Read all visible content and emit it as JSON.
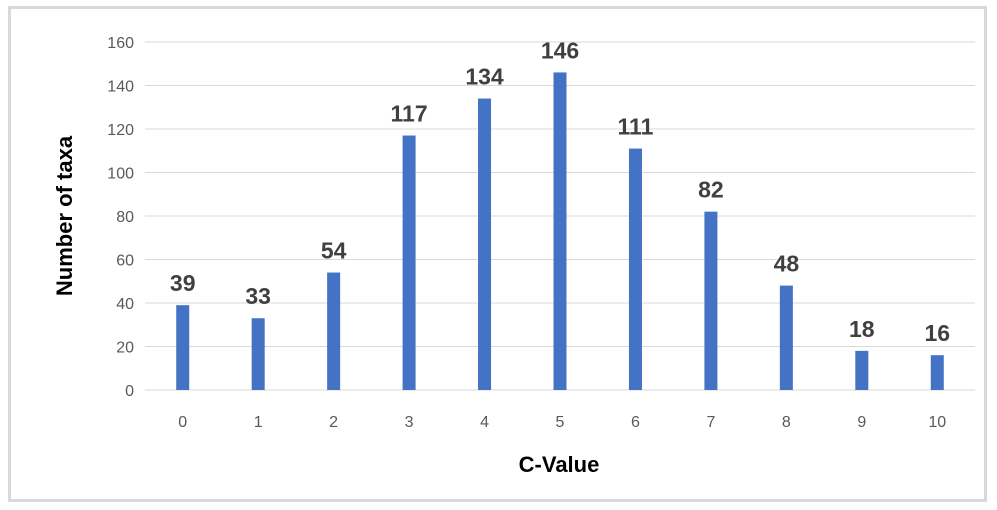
{
  "chart_data": {
    "type": "bar",
    "categories": [
      "0",
      "1",
      "2",
      "3",
      "4",
      "5",
      "6",
      "7",
      "8",
      "9",
      "10"
    ],
    "values": [
      39,
      33,
      54,
      117,
      134,
      146,
      111,
      82,
      48,
      18,
      16
    ],
    "title": "",
    "xlabel": "C-Value",
    "ylabel": "Number of taxa",
    "ylim": [
      0,
      160
    ],
    "yticks": [
      0,
      20,
      40,
      60,
      80,
      100,
      120,
      140,
      160
    ],
    "grid": true,
    "legend": "none",
    "bar_color": "#4472c4"
  }
}
